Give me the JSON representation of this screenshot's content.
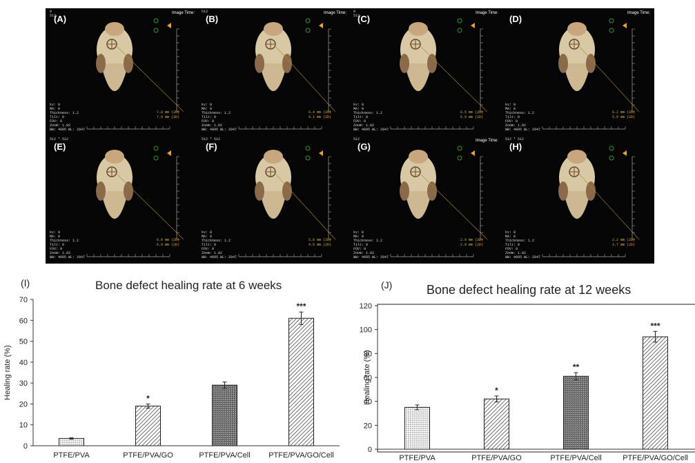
{
  "ct_panels": [
    {
      "label": "(A)",
      "image_time": "Image Time:",
      "size": "0\n512",
      "meas": [
        "7.8 mm (2D)",
        "7.9 mm (2D)"
      ]
    },
    {
      "label": "(B)",
      "image_time": "Image Time:",
      "size": "512",
      "meas": [
        "6.4 mm (2D)",
        "6.1 mm (2D)"
      ]
    },
    {
      "label": "(C)",
      "image_time": "Image Time:",
      "size": "0\n512",
      "meas": [
        "6.5 mm (2D)",
        "6.9 mm (2D)"
      ]
    },
    {
      "label": "(D)",
      "image_time": "Image Time:",
      "size": "",
      "meas": [
        "6.2 mm (2D)",
        "5.9 mm (2D)"
      ]
    },
    {
      "label": "(E)",
      "image_time": "",
      "size": "512 * 512",
      "meas": [
        "6.0 mm (2D)",
        "6.9 mm (2D)"
      ]
    },
    {
      "label": "(F)",
      "image_time": "",
      "size": "512 * 512",
      "meas": [
        "5.8 mm (2D)",
        "4.5 mm (2D)"
      ]
    },
    {
      "label": "(G)",
      "image_time": "Image Time:",
      "size": "512",
      "meas": [
        "2.9 mm (2D)",
        "2.8 mm (2D)"
      ]
    },
    {
      "label": "(H)",
      "image_time": "",
      "size": "512 * 512",
      "meas": [
        "2.2 mm (2D)",
        "1.7 mm (2D)"
      ]
    }
  ],
  "ct_info": "kv: 0\nMA: 0\nThickness: 1.2\nTilt: 0\nFOV: 0\nZoom: 1.02\nWW: 4095 WL: 2047",
  "chart_data": [
    {
      "panel": "(I)",
      "type": "bar",
      "title": "Bone defect healing rate at 6 weeks",
      "ylabel": "Healing rate (%)",
      "xlabel": "",
      "categories": [
        "PTFE/PVA",
        "PTFE/PVA/GO",
        "PTFE/PVA/Cell",
        "PTFE/PVA/GO/Cell"
      ],
      "values": [
        3.5,
        19,
        29,
        61
      ],
      "errors": [
        0.3,
        1,
        1.5,
        3
      ],
      "significance": [
        "",
        "*",
        "",
        "***"
      ],
      "patterns": [
        "dots",
        "diagonal",
        "dense",
        "diagonal"
      ],
      "ylim": [
        0,
        70
      ],
      "yticks": [
        0,
        10,
        20,
        30,
        40,
        50,
        60,
        70
      ],
      "grid": false
    },
    {
      "panel": "(J)",
      "type": "bar",
      "title": "Bone defect healing rate at 12 weeks",
      "ylabel": "Healing rate (%)",
      "xlabel": "",
      "categories": [
        "PTFE/PVA",
        "PTFE/PVA/GO",
        "PTFE/PVA/Cell",
        "PTFE/PVA/GO/Cell"
      ],
      "values": [
        35,
        42,
        61,
        94
      ],
      "errors": [
        2,
        2.5,
        3,
        4.5
      ],
      "significance": [
        "",
        "*",
        "**",
        "***"
      ],
      "patterns": [
        "dots",
        "diagonal",
        "dense",
        "diagonal"
      ],
      "ylim": [
        0,
        120
      ],
      "yticks": [
        0,
        20,
        40,
        60,
        80,
        100,
        120
      ],
      "grid": false
    }
  ]
}
